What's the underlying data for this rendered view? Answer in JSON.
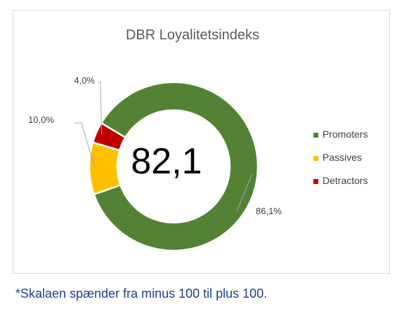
{
  "chart_data": {
    "type": "pie",
    "subtype": "donut",
    "title": "DBR Loyalitetsindeks",
    "center_value": "82,1",
    "categories": [
      "Promoters",
      "Passives",
      "Detractors"
    ],
    "values": [
      86.1,
      10.0,
      4.0
    ],
    "data_labels": [
      "86,1%",
      "10,0%",
      "4,0%"
    ],
    "colors": [
      "#548235",
      "#ffc000",
      "#c00000"
    ],
    "legend": {
      "position": "right",
      "entries": [
        "Promoters",
        "Passives",
        "Detractors"
      ]
    }
  },
  "footnote": "*Skalaen spænder fra minus 100 til plus 100."
}
